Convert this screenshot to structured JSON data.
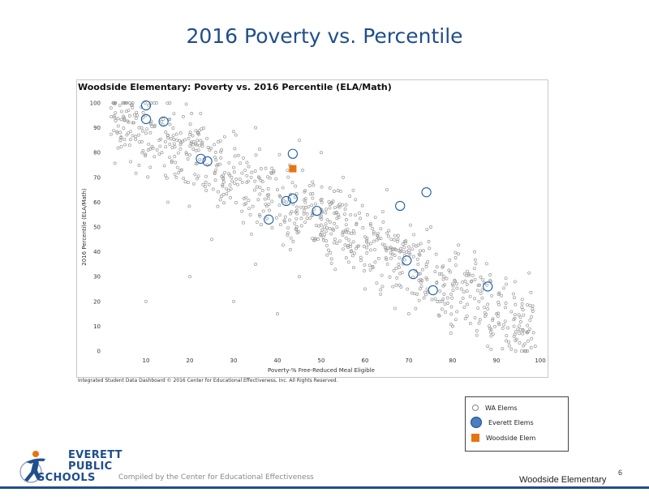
{
  "slide": {
    "title": "2016 Poverty vs. Percentile",
    "source_note": "Integrated Student Data Dashboard © 2016 Center for Educational Effectiveness, Inc. All Rights Reserved.",
    "compiled_by": "Compiled by the Center for Educational Effectiveness",
    "school_footer": "Woodside Elementary",
    "page_number": "6",
    "logo_lines": [
      "EVERETT",
      "PUBLIC",
      "SCHOOLS"
    ]
  },
  "legend": {
    "items": [
      {
        "label": "WA Elems",
        "symbol": "wa"
      },
      {
        "label": "Everett Elems",
        "symbol": "everett"
      },
      {
        "label": "Woodside Elem",
        "symbol": "woodside"
      }
    ]
  },
  "colors": {
    "title": "#1f4e8c",
    "wa": "#9a9a9a",
    "everett": "#1a5fa8",
    "woodside": "#e8740f"
  },
  "chart_data": {
    "type": "scatter",
    "title": "Woodside Elementary:  Poverty vs. 2016 Percentile (ELA/Math)",
    "xlabel": "Poverty-% Free-Reduced Meal Eligible",
    "ylabel": "2016 Percentile (ELA/Math)",
    "xlim": [
      0,
      100
    ],
    "ylim": [
      0,
      100
    ],
    "x_ticks": [
      10,
      20,
      30,
      40,
      50,
      60,
      70,
      80,
      90,
      100
    ],
    "y_ticks": [
      0,
      10,
      20,
      30,
      40,
      50,
      60,
      70,
      80,
      90,
      100
    ],
    "series": [
      {
        "name": "WA Elems",
        "note": "approximately 900 schools, densely clustered along a downward trend",
        "points": [
          [
            2,
            98
          ],
          [
            3,
            96
          ],
          [
            4,
            99
          ],
          [
            5,
            94
          ],
          [
            6,
            97
          ],
          [
            7,
            92
          ],
          [
            8,
            95
          ],
          [
            9,
            90
          ],
          [
            11,
            88
          ],
          [
            12,
            91
          ],
          [
            13,
            85
          ],
          [
            15,
            87
          ],
          [
            16,
            82
          ],
          [
            18,
            84
          ],
          [
            20,
            79
          ],
          [
            22,
            81
          ],
          [
            24,
            75
          ],
          [
            26,
            77
          ],
          [
            28,
            72
          ],
          [
            30,
            74
          ],
          [
            32,
            68
          ],
          [
            34,
            70
          ],
          [
            36,
            66
          ],
          [
            38,
            63
          ],
          [
            40,
            65
          ],
          [
            42,
            60
          ],
          [
            44,
            62
          ],
          [
            46,
            58
          ],
          [
            48,
            55
          ],
          [
            50,
            57
          ],
          [
            52,
            52
          ],
          [
            54,
            54
          ],
          [
            56,
            49
          ],
          [
            58,
            51
          ],
          [
            60,
            46
          ],
          [
            62,
            48
          ],
          [
            64,
            43
          ],
          [
            66,
            45
          ],
          [
            68,
            40
          ],
          [
            70,
            42
          ],
          [
            72,
            37
          ],
          [
            74,
            35
          ],
          [
            76,
            32
          ],
          [
            78,
            30
          ],
          [
            80,
            27
          ],
          [
            82,
            25
          ],
          [
            84,
            22
          ],
          [
            86,
            20
          ],
          [
            88,
            17
          ],
          [
            90,
            15
          ],
          [
            92,
            12
          ],
          [
            94,
            10
          ],
          [
            96,
            7
          ],
          [
            98,
            5
          ],
          [
            15,
            60
          ],
          [
            25,
            45
          ],
          [
            35,
            35
          ],
          [
            45,
            30
          ],
          [
            55,
            70
          ],
          [
            65,
            65
          ],
          [
            75,
            50
          ],
          [
            85,
            40
          ],
          [
            20,
            30
          ],
          [
            30,
            20
          ],
          [
            40,
            15
          ],
          [
            10,
            20
          ],
          [
            60,
            25
          ],
          [
            70,
            15
          ],
          [
            80,
            10
          ],
          [
            50,
            80
          ],
          [
            35,
            90
          ],
          [
            45,
            85
          ]
        ]
      },
      {
        "name": "Everett Elems",
        "points": [
          [
            10,
            99
          ],
          [
            10,
            93.5
          ],
          [
            14,
            92.5
          ],
          [
            22.5,
            77.5
          ],
          [
            24,
            76.5
          ],
          [
            43.5,
            79.5
          ],
          [
            42,
            60.5
          ],
          [
            43.5,
            61.5
          ],
          [
            38,
            53
          ],
          [
            49,
            56.5
          ],
          [
            68,
            58.5
          ],
          [
            74,
            64
          ],
          [
            69.5,
            36.5
          ],
          [
            71,
            31
          ],
          [
            75.5,
            24.5
          ],
          [
            88,
            26
          ]
        ]
      },
      {
        "name": "Woodside Elem",
        "points": [
          [
            43.5,
            73.5
          ]
        ]
      }
    ]
  }
}
